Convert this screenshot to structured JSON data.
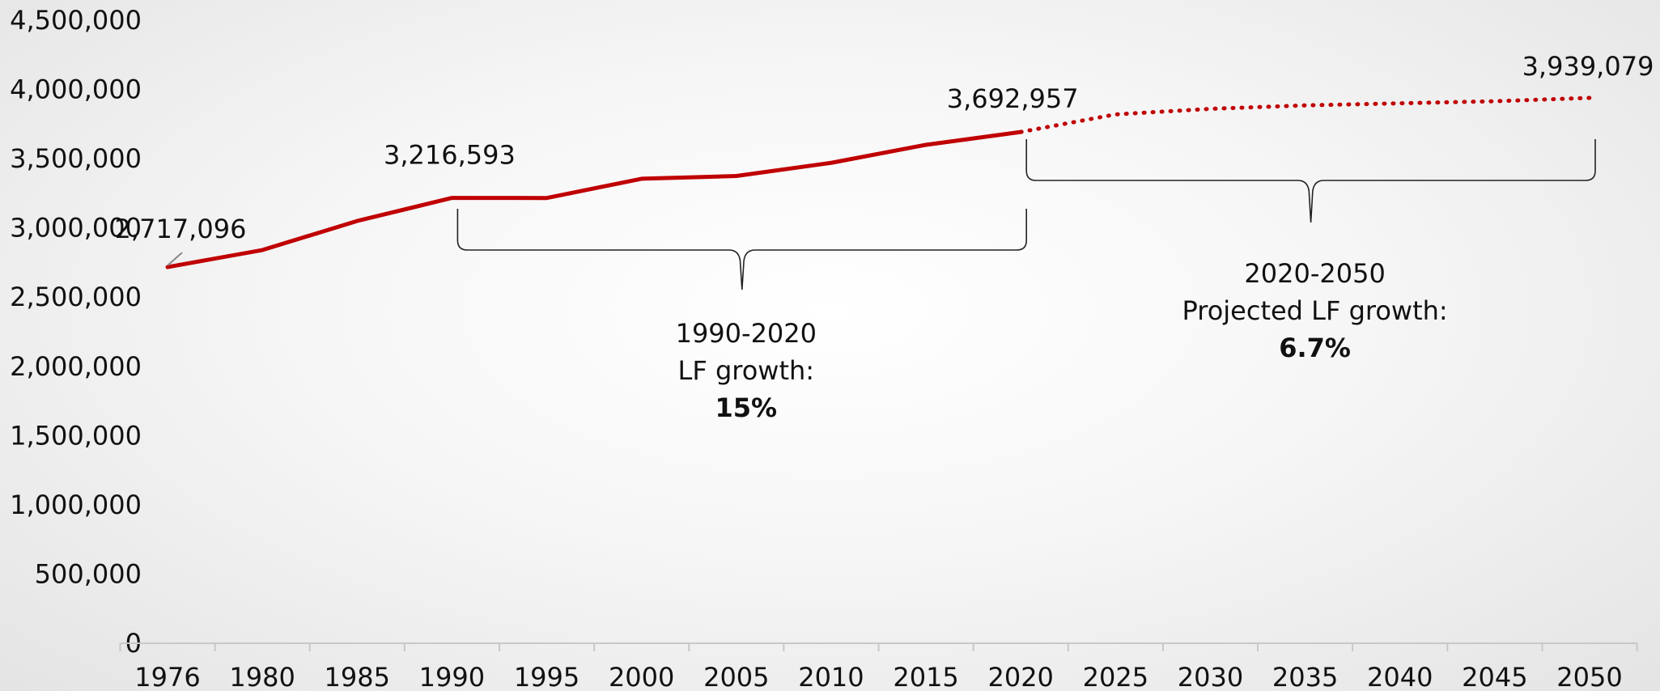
{
  "chart_data": {
    "type": "line",
    "title": "",
    "xlabel": "",
    "ylabel": "",
    "categories": [
      "1976",
      "1980",
      "1985",
      "1990",
      "1995",
      "2000",
      "2005",
      "2010",
      "2015",
      "2020",
      "2025",
      "2030",
      "2035",
      "2040",
      "2045",
      "2050"
    ],
    "ylim": [
      0,
      4500000
    ],
    "yticks": [
      0,
      500000,
      1000000,
      1500000,
      2000000,
      2500000,
      3000000,
      3500000,
      4000000,
      4500000
    ],
    "ytick_labels": [
      "0",
      "500,000",
      "1,000,000",
      "1,500,000",
      "2,000,000",
      "2,500,000",
      "3,000,000",
      "3,500,000",
      "4,000,000",
      "4,500,000"
    ],
    "grid": false,
    "series": [
      {
        "style": "solid",
        "color": "#c00000",
        "values": [
          2717096,
          2840000,
          3050000,
          3216593,
          3216000,
          3355000,
          3375000,
          3470000,
          3600000,
          3692957,
          null,
          null,
          null,
          null,
          null,
          null
        ]
      },
      {
        "style": "dotted",
        "color": "#c00000",
        "values": [
          null,
          null,
          null,
          null,
          null,
          null,
          null,
          null,
          null,
          3692957,
          3820000,
          3860000,
          3885000,
          3900000,
          3915000,
          3939079
        ]
      }
    ],
    "data_labels": [
      {
        "category": "1976",
        "text": "2,717,096"
      },
      {
        "category": "1990",
        "text": "3,216,593"
      },
      {
        "category": "2020",
        "text": "3,692,957"
      },
      {
        "category": "2050",
        "text": "3,939,079"
      }
    ],
    "annotations": [
      {
        "from": "1990",
        "to": "2020",
        "lines": [
          "1990-2020",
          "LF growth:"
        ],
        "value": "15%"
      },
      {
        "from": "2020",
        "to": "2050",
        "lines": [
          "2020-2050",
          "Projected LF growth:"
        ],
        "value": "6.7%"
      }
    ]
  }
}
